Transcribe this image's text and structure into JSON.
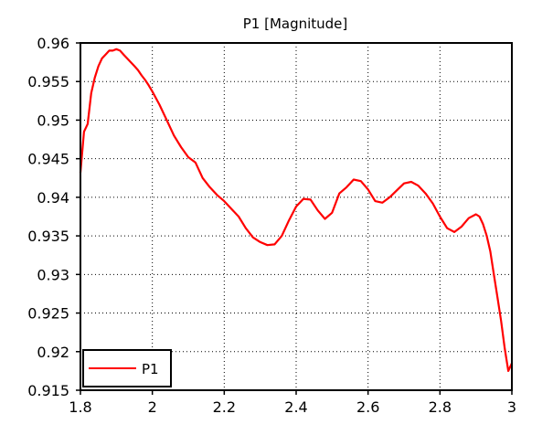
{
  "chart_data": {
    "type": "line",
    "title": "P1 [Magnitude]",
    "xlabel": "",
    "ylabel": "",
    "xlim": [
      1.8,
      3.0
    ],
    "ylim": [
      0.915,
      0.96
    ],
    "x_ticks": [
      1.8,
      2.0,
      2.2,
      2.4,
      2.6,
      2.8,
      3.0
    ],
    "x_tick_labels": [
      "1.8",
      "2",
      "2.2",
      "2.4",
      "2.6",
      "2.8",
      "3"
    ],
    "y_ticks": [
      0.915,
      0.92,
      0.925,
      0.93,
      0.935,
      0.94,
      0.945,
      0.95,
      0.955,
      0.96
    ],
    "y_tick_labels": [
      "0.915",
      "0.92",
      "0.925",
      "0.93",
      "0.935",
      "0.94",
      "0.945",
      "0.95",
      "0.955",
      "0.96"
    ],
    "grid": true,
    "legend_position": "bottom-left",
    "series": [
      {
        "name": "P1",
        "color": "#ff0000",
        "x": [
          1.8,
          1.81,
          1.82,
          1.83,
          1.84,
          1.85,
          1.86,
          1.87,
          1.88,
          1.89,
          1.9,
          1.91,
          1.92,
          1.93,
          1.94,
          1.95,
          1.96,
          1.97,
          1.98,
          1.99,
          2.0,
          2.02,
          2.04,
          2.06,
          2.08,
          2.1,
          2.12,
          2.14,
          2.16,
          2.18,
          2.2,
          2.22,
          2.24,
          2.26,
          2.28,
          2.3,
          2.32,
          2.34,
          2.36,
          2.38,
          2.4,
          2.42,
          2.44,
          2.46,
          2.48,
          2.5,
          2.52,
          2.54,
          2.56,
          2.58,
          2.6,
          2.62,
          2.64,
          2.66,
          2.68,
          2.7,
          2.72,
          2.74,
          2.76,
          2.78,
          2.8,
          2.82,
          2.84,
          2.86,
          2.88,
          2.9,
          2.91,
          2.92,
          2.93,
          2.94,
          2.95,
          2.96,
          2.97,
          2.98,
          2.99,
          3.0
        ],
        "y": [
          0.9432,
          0.9485,
          0.9495,
          0.9535,
          0.9555,
          0.957,
          0.958,
          0.9585,
          0.959,
          0.959,
          0.9592,
          0.959,
          0.9585,
          0.958,
          0.9575,
          0.957,
          0.9565,
          0.9558,
          0.9552,
          0.9545,
          0.9537,
          0.952,
          0.95,
          0.948,
          0.9465,
          0.9452,
          0.9445,
          0.9425,
          0.9413,
          0.9403,
          0.9395,
          0.9385,
          0.9375,
          0.936,
          0.9348,
          0.9342,
          0.9338,
          0.9339,
          0.935,
          0.937,
          0.9388,
          0.9398,
          0.9397,
          0.9383,
          0.9372,
          0.938,
          0.9405,
          0.9413,
          0.9423,
          0.9421,
          0.941,
          0.9395,
          0.9393,
          0.94,
          0.9409,
          0.9418,
          0.942,
          0.9415,
          0.9405,
          0.9392,
          0.9375,
          0.936,
          0.9355,
          0.9362,
          0.9373,
          0.9378,
          0.9375,
          0.9365,
          0.935,
          0.933,
          0.93,
          0.927,
          0.924,
          0.9205,
          0.9175,
          0.9185
        ]
      }
    ]
  }
}
